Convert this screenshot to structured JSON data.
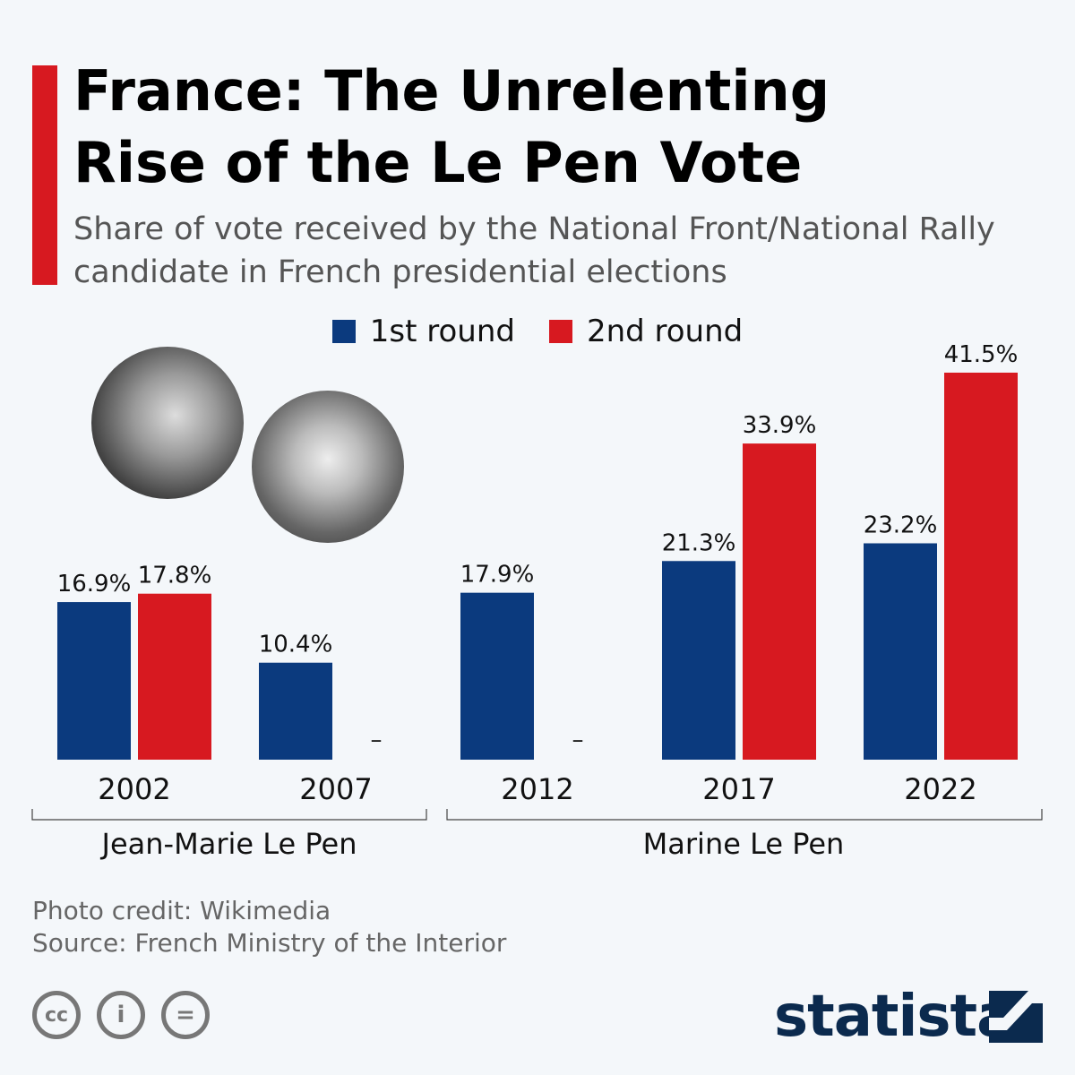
{
  "title": "France: The Unrelenting Rise of the Le Pen Vote",
  "subtitle": "Share of vote received by the National Front/National Rally candidate in French presidential elections",
  "legend": [
    {
      "label": "1st round",
      "color": "#0b3a7e"
    },
    {
      "label": "2nd round",
      "color": "#d71920"
    }
  ],
  "chart_data": {
    "type": "bar",
    "categories": [
      "2002",
      "2007",
      "2012",
      "2017",
      "2022"
    ],
    "series": [
      {
        "name": "1st round",
        "values": [
          16.9,
          10.4,
          17.9,
          21.3,
          23.2
        ],
        "labels": [
          "16.9%",
          "10.4%",
          "17.9%",
          "21.3%",
          "23.2%"
        ]
      },
      {
        "name": "2nd round",
        "values": [
          17.8,
          null,
          null,
          33.9,
          41.5
        ],
        "labels": [
          "17.8%",
          "–",
          "–",
          "33.9%",
          "41.5%"
        ]
      }
    ],
    "groups": [
      {
        "label": "Jean-Marie Le Pen",
        "categories": [
          "2002",
          "2007"
        ]
      },
      {
        "label": "Marine Le Pen",
        "categories": [
          "2012",
          "2017",
          "2022"
        ]
      }
    ],
    "ylim": [
      0,
      45
    ],
    "grid": false
  },
  "footer": {
    "photo_credit": "Photo credit: Wikimedia",
    "source": "Source: French Ministry of the Interior",
    "cc": "cc",
    "brand": "statista"
  }
}
